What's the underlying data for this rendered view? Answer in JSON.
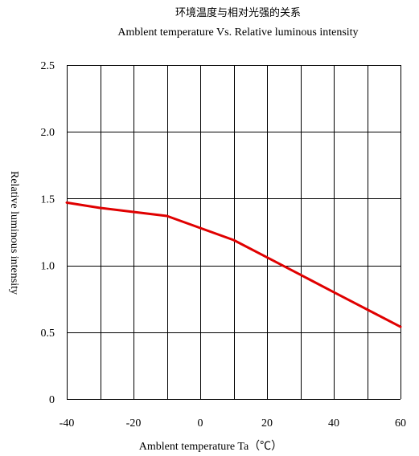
{
  "chart_data": {
    "type": "line",
    "title": "环境温度与相对光强的关系",
    "subtitle": "Amblent temperature  Vs.  Relative luminous intensity",
    "xlabel": "Amblent temperature Ta（℃）",
    "ylabel": "Relative luminous intensity",
    "xlim": [
      -40,
      60
    ],
    "ylim": [
      0,
      2.5
    ],
    "x_ticks": [
      -40,
      -20,
      0,
      20,
      40,
      60
    ],
    "x_tick_labels": [
      "-40",
      "-20",
      "0",
      "20",
      "40",
      "60"
    ],
    "y_ticks": [
      0,
      0.5,
      1.0,
      1.5,
      2.0,
      2.5
    ],
    "y_tick_labels": [
      "0",
      "0.5",
      "1.0",
      "1.5",
      "2.0",
      "2.5"
    ],
    "grid": true,
    "grid_x_step": 10,
    "grid_y_step": 0.5,
    "series": [
      {
        "color": "#e00000",
        "x": [
          -40,
          -30,
          -20,
          -10,
          0,
          10,
          20,
          30,
          40,
          50,
          60
        ],
        "y": [
          1.47,
          1.43,
          1.4,
          1.37,
          1.28,
          1.19,
          1.06,
          0.93,
          0.8,
          0.67,
          0.54
        ]
      }
    ]
  }
}
